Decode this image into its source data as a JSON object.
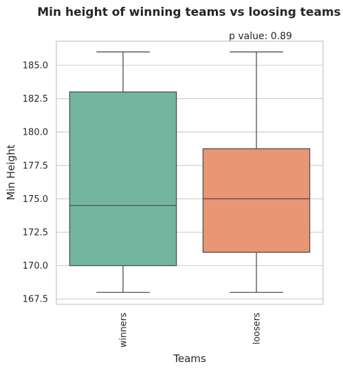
{
  "chart_data": {
    "type": "box",
    "title": "Min height of winning teams vs loosing teams",
    "annotation": "p value: 0.89",
    "xlabel": "Teams",
    "ylabel": "Min Height",
    "ylim": [
      167.1,
      186.8
    ],
    "y_ticks": [
      167.5,
      170.0,
      172.5,
      175.0,
      177.5,
      180.0,
      182.5,
      185.0
    ],
    "y_tick_labels": [
      "167.5",
      "170.0",
      "172.5",
      "175.0",
      "177.5",
      "180.0",
      "182.5",
      "185.0"
    ],
    "grid": true,
    "categories": [
      "winners",
      "loosers"
    ],
    "boxes": [
      {
        "category": "winners",
        "whisker_low": 168.0,
        "q1": 170.0,
        "median": 174.5,
        "q3": 183.0,
        "whisker_high": 186.0,
        "color": "#73b6a0"
      },
      {
        "category": "loosers",
        "whisker_low": 168.0,
        "q1": 171.0,
        "median": 175.0,
        "q3": 178.75,
        "whisker_high": 186.0,
        "color": "#e99675"
      }
    ]
  }
}
